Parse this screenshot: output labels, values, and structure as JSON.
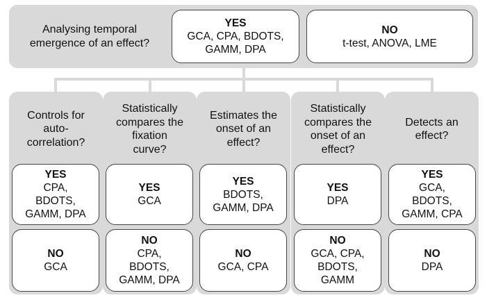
{
  "top": {
    "question": "Analysing temporal\nemergence of an effect?",
    "yes": {
      "label": "YES",
      "methods": "GCA, CPA, BDOTS,\nGAMM, DPA"
    },
    "no": {
      "label": "NO",
      "methods": "t-test, ANOVA, LME"
    }
  },
  "criteria": [
    {
      "question": "Controls for\nauto-\ncorrelation?",
      "yes": {
        "label": "YES",
        "methods": "CPA,\nBDOTS,\nGAMM, DPA"
      },
      "no": {
        "label": "NO",
        "methods": "GCA"
      }
    },
    {
      "question": "Statistically\ncompares the\nfixation\ncurve?",
      "yes": {
        "label": "YES",
        "methods": "GCA"
      },
      "no": {
        "label": "NO",
        "methods": "CPA,\nBDOTS,\nGAMM, DPA"
      }
    },
    {
      "question": "Estimates the\nonset of an\neffect?",
      "yes": {
        "label": "YES",
        "methods": "BDOTS,\nGAMM, DPA"
      },
      "no": {
        "label": "NO",
        "methods": "GCA, CPA"
      }
    },
    {
      "question": "Statistically\ncompares the\nonset of an\neffect?",
      "yes": {
        "label": "YES",
        "methods": "DPA"
      },
      "no": {
        "label": "NO",
        "methods": "GCA, CPA,\nBDOTS,\nGAMM"
      }
    },
    {
      "question": "Detects an\neffect?",
      "yes": {
        "label": "YES",
        "methods": "GCA,\nBDOTS,\nGAMM, CPA"
      },
      "no": {
        "label": "NO",
        "methods": "DPA"
      }
    }
  ]
}
